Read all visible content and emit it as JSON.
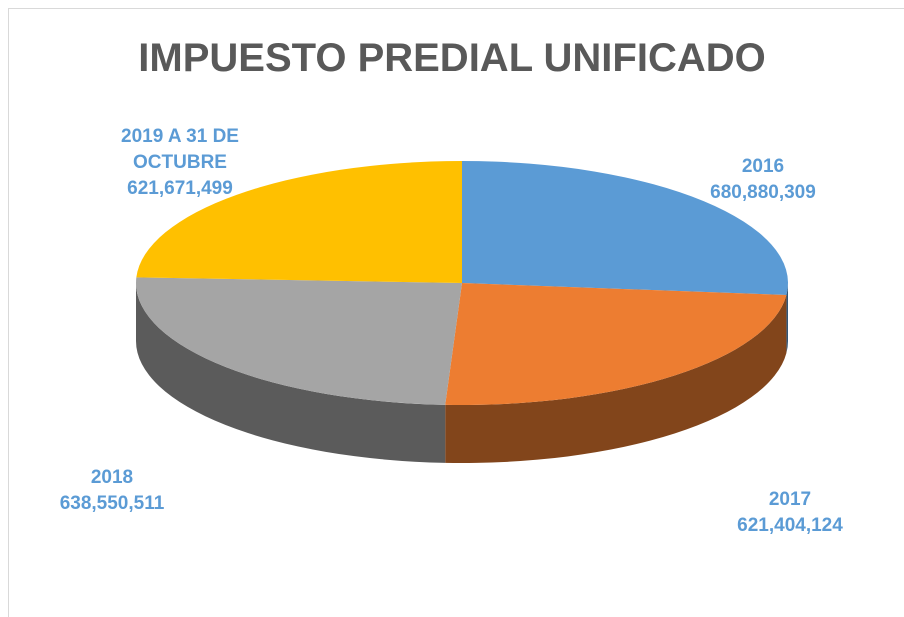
{
  "chart_data": {
    "type": "pie",
    "title": "IMPUESTO PREDIAL UNIFICADO",
    "categories": [
      "2016",
      "2017",
      "2018",
      "2019 A 31 DE OCTUBRE"
    ],
    "values": [
      680880309,
      621404124,
      638550511,
      621671499
    ],
    "value_labels": [
      "680,880,309",
      "621,404,124",
      "638,550,511",
      "621,671,499"
    ],
    "colors": [
      "#5b9bd5",
      "#ed7d31",
      "#a5a5a5",
      "#ffc000"
    ],
    "label_color": "#5b9bd5"
  }
}
